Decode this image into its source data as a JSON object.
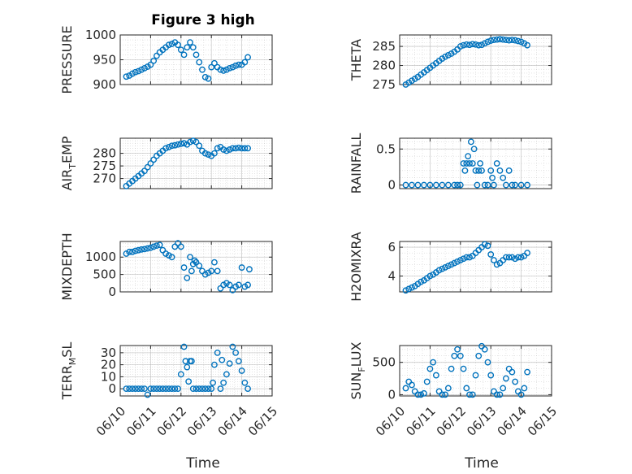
{
  "title": "Figure 3 high",
  "xlabel": "Time",
  "x_ticks": [
    "06/10",
    "06/11",
    "06/12",
    "06/13",
    "06/14",
    "06/15"
  ],
  "colors": {
    "marker": "#0072BD",
    "axes": "#262626",
    "grid": "#b8b8b8"
  },
  "chart_data": [
    {
      "type": "scatter",
      "ylabel": "PRESSURE",
      "ylim": [
        900,
        1000
      ],
      "yticks": [
        900,
        950,
        1000
      ],
      "x_start": "06/10",
      "x_end": "06/15",
      "x": [
        0.2,
        0.3,
        0.4,
        0.5,
        0.6,
        0.7,
        0.8,
        0.9,
        1.0,
        1.1,
        1.2,
        1.3,
        1.4,
        1.5,
        1.6,
        1.7,
        1.8,
        1.9,
        2.0,
        2.1,
        2.2,
        2.3,
        2.4,
        2.5,
        2.6,
        2.7,
        2.8,
        2.9,
        3.0,
        3.1,
        3.2,
        3.3,
        3.4,
        3.5,
        3.6,
        3.7,
        3.8,
        3.9,
        4.0,
        4.1,
        4.2
      ],
      "y": [
        916,
        918,
        922,
        925,
        927,
        930,
        933,
        936,
        940,
        948,
        958,
        965,
        970,
        975,
        980,
        982,
        985,
        980,
        970,
        960,
        975,
        985,
        975,
        960,
        945,
        930,
        915,
        912,
        935,
        943,
        935,
        930,
        928,
        930,
        933,
        935,
        938,
        940,
        940,
        945,
        955
      ]
    },
    {
      "type": "scatter",
      "ylabel": "THETA",
      "ylim": [
        275,
        288
      ],
      "yticks": [
        275,
        280,
        285
      ],
      "x": [
        0.2,
        0.3,
        0.4,
        0.5,
        0.6,
        0.7,
        0.8,
        0.9,
        1.0,
        1.1,
        1.2,
        1.3,
        1.4,
        1.5,
        1.6,
        1.7,
        1.8,
        1.9,
        2.0,
        2.1,
        2.2,
        2.3,
        2.4,
        2.5,
        2.6,
        2.7,
        2.8,
        2.9,
        3.0,
        3.1,
        3.2,
        3.3,
        3.4,
        3.5,
        3.6,
        3.7,
        3.8,
        3.9,
        4.0,
        4.1,
        4.2
      ],
      "y": [
        275,
        275.5,
        276,
        276.5,
        277,
        277.6,
        278.2,
        278.8,
        279.4,
        280,
        280.6,
        281.2,
        281.8,
        282.3,
        282.7,
        283.1,
        283.6,
        284.2,
        285,
        285.3,
        285.5,
        285.4,
        285.6,
        285.5,
        285.3,
        285.4,
        285.8,
        286.2,
        286.5,
        286.7,
        286.8,
        286.9,
        286.8,
        286.7,
        286.6,
        286.7,
        286.6,
        286.4,
        286.2,
        285.8,
        285.3
      ]
    },
    {
      "type": "scatter",
      "ylabel": "AIR_TEMP",
      "ylim": [
        266,
        286
      ],
      "yticks": [
        270,
        275,
        280
      ],
      "x": [
        0.2,
        0.3,
        0.4,
        0.5,
        0.6,
        0.7,
        0.8,
        0.9,
        1.0,
        1.1,
        1.2,
        1.3,
        1.4,
        1.5,
        1.6,
        1.7,
        1.8,
        1.9,
        2.0,
        2.1,
        2.2,
        2.3,
        2.4,
        2.5,
        2.6,
        2.7,
        2.8,
        2.9,
        3.0,
        3.1,
        3.2,
        3.3,
        3.4,
        3.5,
        3.6,
        3.7,
        3.8,
        3.9,
        4.0,
        4.1,
        4.2
      ],
      "y": [
        267,
        268,
        269,
        270,
        271,
        272,
        273,
        274.5,
        276,
        277.5,
        279,
        280,
        281,
        282,
        282.5,
        283,
        283.2,
        283.5,
        283.8,
        284,
        283.5,
        284.5,
        285,
        284.5,
        283,
        281,
        280,
        279.5,
        279,
        280,
        282,
        282.5,
        281.5,
        281,
        281.5,
        282,
        282,
        282.2,
        282,
        282,
        282
      ]
    },
    {
      "type": "scatter",
      "ylabel": "RAINFALL",
      "ylim": [
        -0.05,
        0.65
      ],
      "yticks": [
        0,
        0.5
      ],
      "x": [
        0.2,
        0.4,
        0.6,
        0.8,
        1.0,
        1.2,
        1.4,
        1.6,
        1.8,
        1.9,
        2.0,
        2.1,
        2.15,
        2.2,
        2.25,
        2.3,
        2.35,
        2.4,
        2.45,
        2.5,
        2.55,
        2.6,
        2.65,
        2.7,
        2.8,
        2.9,
        3.0,
        3.05,
        3.1,
        3.2,
        3.3,
        3.4,
        3.5,
        3.6,
        3.7,
        3.8,
        4.0,
        4.2
      ],
      "y": [
        0,
        0,
        0,
        0,
        0,
        0,
        0,
        0,
        0,
        0,
        0,
        0.3,
        0.2,
        0.3,
        0.4,
        0.3,
        0.6,
        0.3,
        0.5,
        0.2,
        0,
        0.2,
        0.3,
        0.2,
        0,
        0,
        0.2,
        0.1,
        0,
        0.3,
        0.2,
        0.1,
        0,
        0.2,
        0,
        0,
        0,
        0
      ]
    },
    {
      "type": "scatter",
      "ylabel": "MIXDEPTH",
      "ylim": [
        0,
        1450
      ],
      "yticks": [
        0,
        500,
        1000
      ],
      "x": [
        0.2,
        0.3,
        0.4,
        0.5,
        0.6,
        0.7,
        0.8,
        0.9,
        1.0,
        1.1,
        1.2,
        1.3,
        1.4,
        1.5,
        1.6,
        1.7,
        1.8,
        1.9,
        2.0,
        2.1,
        2.2,
        2.3,
        2.35,
        2.4,
        2.45,
        2.5,
        2.6,
        2.7,
        2.8,
        2.9,
        3.0,
        3.1,
        3.2,
        3.3,
        3.4,
        3.5,
        3.6,
        3.7,
        3.8,
        3.9,
        4.0,
        4.1,
        4.2,
        4.25
      ],
      "y": [
        1100,
        1150,
        1150,
        1180,
        1200,
        1220,
        1230,
        1250,
        1270,
        1300,
        1330,
        1350,
        1200,
        1100,
        1050,
        1000,
        1300,
        1400,
        1300,
        700,
        400,
        1000,
        600,
        800,
        900,
        850,
        750,
        600,
        500,
        550,
        600,
        850,
        600,
        100,
        200,
        250,
        200,
        50,
        150,
        200,
        700,
        150,
        200,
        650
      ]
    },
    {
      "type": "scatter",
      "ylabel": "H2OMIXRA",
      "ylim": [
        2.9,
        6.4
      ],
      "yticks": [
        4,
        6
      ],
      "x": [
        0.2,
        0.3,
        0.4,
        0.5,
        0.6,
        0.7,
        0.8,
        0.9,
        1.0,
        1.1,
        1.2,
        1.3,
        1.4,
        1.5,
        1.6,
        1.7,
        1.8,
        1.9,
        2.0,
        2.1,
        2.2,
        2.3,
        2.4,
        2.5,
        2.6,
        2.7,
        2.8,
        2.9,
        3.0,
        3.1,
        3.2,
        3.3,
        3.4,
        3.5,
        3.6,
        3.7,
        3.8,
        3.9,
        4.0,
        4.1,
        4.2
      ],
      "y": [
        3.0,
        3.1,
        3.2,
        3.3,
        3.45,
        3.6,
        3.7,
        3.85,
        4.0,
        4.1,
        4.25,
        4.4,
        4.5,
        4.6,
        4.7,
        4.8,
        4.9,
        5.0,
        5.1,
        5.2,
        5.3,
        5.3,
        5.4,
        5.6,
        5.8,
        6.0,
        6.2,
        6.1,
        5.5,
        5.1,
        4.8,
        4.9,
        5.1,
        5.3,
        5.3,
        5.3,
        5.2,
        5.3,
        5.3,
        5.4,
        5.6
      ]
    },
    {
      "type": "scatter",
      "ylabel": "TERR_MSL",
      "ylim": [
        -6,
        36
      ],
      "yticks": [
        0,
        10,
        20,
        30
      ],
      "x": [
        0.2,
        0.3,
        0.4,
        0.5,
        0.6,
        0.7,
        0.8,
        0.9,
        1.0,
        1.1,
        1.2,
        1.3,
        1.4,
        1.5,
        1.6,
        1.7,
        1.8,
        1.9,
        2.0,
        2.1,
        2.15,
        2.2,
        2.25,
        2.3,
        2.35,
        2.4,
        2.5,
        2.6,
        2.7,
        2.8,
        2.9,
        3.0,
        3.05,
        3.1,
        3.2,
        3.3,
        3.35,
        3.4,
        3.5,
        3.6,
        3.7,
        3.8,
        3.9,
        4.0,
        4.1,
        4.2
      ],
      "y": [
        0,
        0,
        0,
        0,
        0,
        0,
        0,
        -5,
        0,
        0,
        0,
        0,
        0,
        0,
        0,
        0,
        0,
        0,
        12,
        35,
        23,
        18,
        6,
        23,
        23,
        0,
        0,
        0,
        0,
        0,
        0,
        0,
        5,
        20,
        30,
        0,
        24,
        5,
        12,
        21,
        35,
        30,
        23,
        15,
        5,
        0
      ]
    },
    {
      "type": "scatter",
      "ylabel": "SUN_FLUX",
      "ylim": [
        -20,
        760
      ],
      "yticks": [
        0,
        500
      ],
      "x": [
        0.2,
        0.3,
        0.4,
        0.5,
        0.6,
        0.7,
        0.8,
        0.9,
        1.0,
        1.1,
        1.2,
        1.3,
        1.4,
        1.5,
        1.6,
        1.7,
        1.8,
        1.9,
        2.0,
        2.1,
        2.2,
        2.3,
        2.4,
        2.5,
        2.6,
        2.7,
        2.8,
        2.9,
        3.0,
        3.1,
        3.2,
        3.3,
        3.4,
        3.5,
        3.6,
        3.7,
        3.8,
        3.9,
        4.0,
        4.1,
        4.2
      ],
      "y": [
        100,
        200,
        150,
        50,
        0,
        0,
        20,
        200,
        400,
        500,
        300,
        50,
        0,
        0,
        100,
        400,
        600,
        700,
        600,
        400,
        100,
        0,
        0,
        300,
        600,
        750,
        700,
        500,
        300,
        50,
        0,
        0,
        100,
        250,
        400,
        350,
        200,
        50,
        0,
        100,
        350
      ]
    }
  ]
}
